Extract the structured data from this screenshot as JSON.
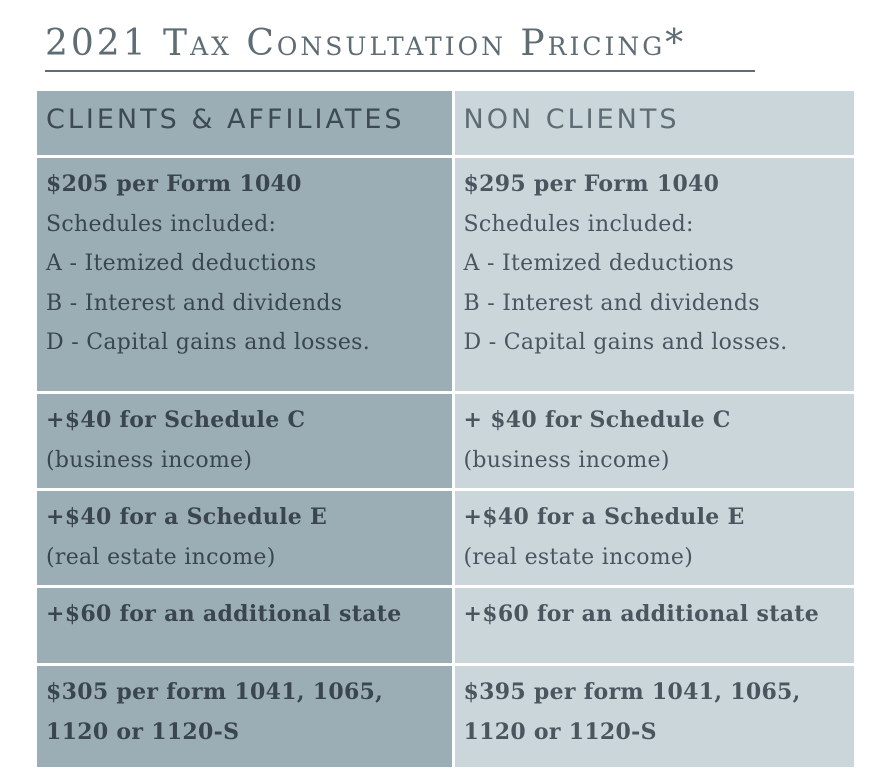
{
  "title": "2021 Tax Consultation Pricing*",
  "headers": {
    "clients": "CLIENTS & AFFILIATES",
    "non_clients": "NON CLIENTS"
  },
  "clients": {
    "base_price": "$205 per Form 1040",
    "schedules_intro": "Schedules included:",
    "schedule_a": "A - Itemized deductions",
    "schedule_b": "B - Interest and dividends",
    "schedule_d": "D - Capital gains and losses.",
    "schedule_c_price": "+$40 for Schedule C",
    "schedule_c_desc": "(business income)",
    "schedule_e_price": "+$40 for a Schedule E",
    "schedule_e_desc": "(real estate income)",
    "additional_state": "+$60 for an additional state",
    "forms_line1": "$305 per form 1041, 1065,",
    "forms_line2": "1120 or 1120-S"
  },
  "non_clients": {
    "base_price": "$295 per Form 1040",
    "schedules_intro": "Schedules included:",
    "schedule_a": "A - Itemized deductions",
    "schedule_b": "B - Interest and dividends",
    "schedule_d": "D - Capital gains and losses.",
    "schedule_c_price": "+ $40 for Schedule C",
    "schedule_c_desc": "(business income)",
    "schedule_e_price": "+$40 for a Schedule E",
    "schedule_e_desc": "(real estate income)",
    "additional_state": "+$60 for an additional state",
    "forms_line1": "$395 per form 1041, 1065,",
    "forms_line2": "1120 or 1120-S"
  },
  "colors": {
    "title": "#5e6c74",
    "clients_column_bg": "#9baeb6",
    "non_clients_column_bg": "#cad6da",
    "text": "#3e4a53"
  }
}
